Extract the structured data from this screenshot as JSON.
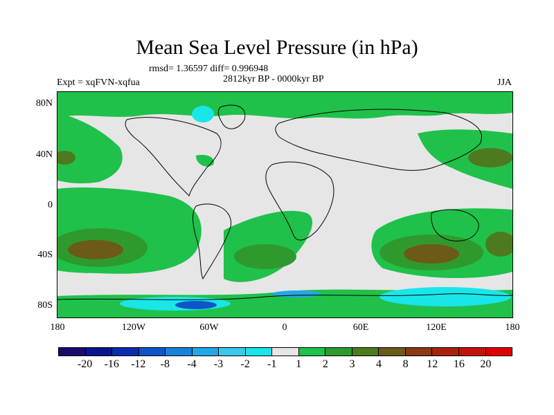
{
  "title": "Mean Sea Level Pressure (in hPa)",
  "stats": "rmsd= 1.36597 diff= 0.996948",
  "period": "2812kyr BP - 0000kyr BP",
  "experiment": "Expt = xqFVN-xqfua",
  "season": "JJA",
  "y_ticks": [
    "80N",
    "40N",
    "0",
    "40S",
    "80S"
  ],
  "x_ticks": [
    "180",
    "120W",
    "60W",
    "0",
    "60E",
    "120E",
    "180"
  ],
  "colorbar": {
    "labels": [
      "-20",
      "-16",
      "-12",
      "-8",
      "-4",
      "-3",
      "-2",
      "-1",
      "1",
      "2",
      "3",
      "4",
      "8",
      "12",
      "16",
      "20"
    ],
    "colors": [
      "#1a0a6e",
      "#0a148c",
      "#0a2eaa",
      "#0d55c8",
      "#1982d8",
      "#23a7e6",
      "#3bc7ee",
      "#19e6e9",
      "#e6e6e6",
      "#1fc14a",
      "#2e9a2e",
      "#4d7a1e",
      "#6b5a18",
      "#8b3a10",
      "#a8220c",
      "#c41208",
      "#e00000"
    ]
  },
  "map_colors": {
    "neutral": "#e6e6e6",
    "plus1": "#1fc14a",
    "plus2": "#2e9a2e",
    "plus3": "#4d7a1e",
    "plus4": "#6b5a18",
    "minus1": "#19e6e9",
    "minus2": "#3bc7ee",
    "minus3": "#23a7e6",
    "minus4": "#0d55c8"
  }
}
